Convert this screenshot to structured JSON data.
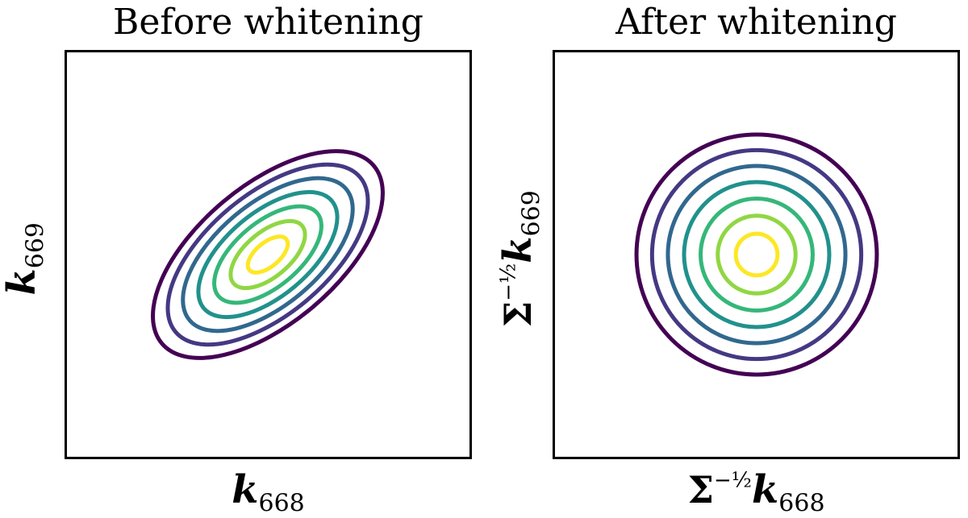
{
  "chart_data": [
    {
      "type": "contour",
      "title": "Before whitening",
      "xlabel": {
        "sigma": "",
        "exp": "",
        "k": "k",
        "sub": "668"
      },
      "ylabel": {
        "sigma": "",
        "exp": "",
        "k": "k",
        "sub": "669"
      },
      "levels": 7,
      "correlation": 0.6,
      "colors": [
        "#440154",
        "#443983",
        "#31688e",
        "#21918c",
        "#35b779",
        "#90d743",
        "#fde725"
      ]
    },
    {
      "type": "contour",
      "title": "After whitening",
      "xlabel": {
        "sigma": "Σ",
        "exp": "−½",
        "k": "k",
        "sub": "668"
      },
      "ylabel": {
        "sigma": "Σ",
        "exp": "−½",
        "k": "k",
        "sub": "669"
      },
      "levels": 7,
      "correlation": 0.0,
      "colors": [
        "#440154",
        "#443983",
        "#31688e",
        "#21918c",
        "#35b779",
        "#90d743",
        "#fde725"
      ]
    }
  ]
}
